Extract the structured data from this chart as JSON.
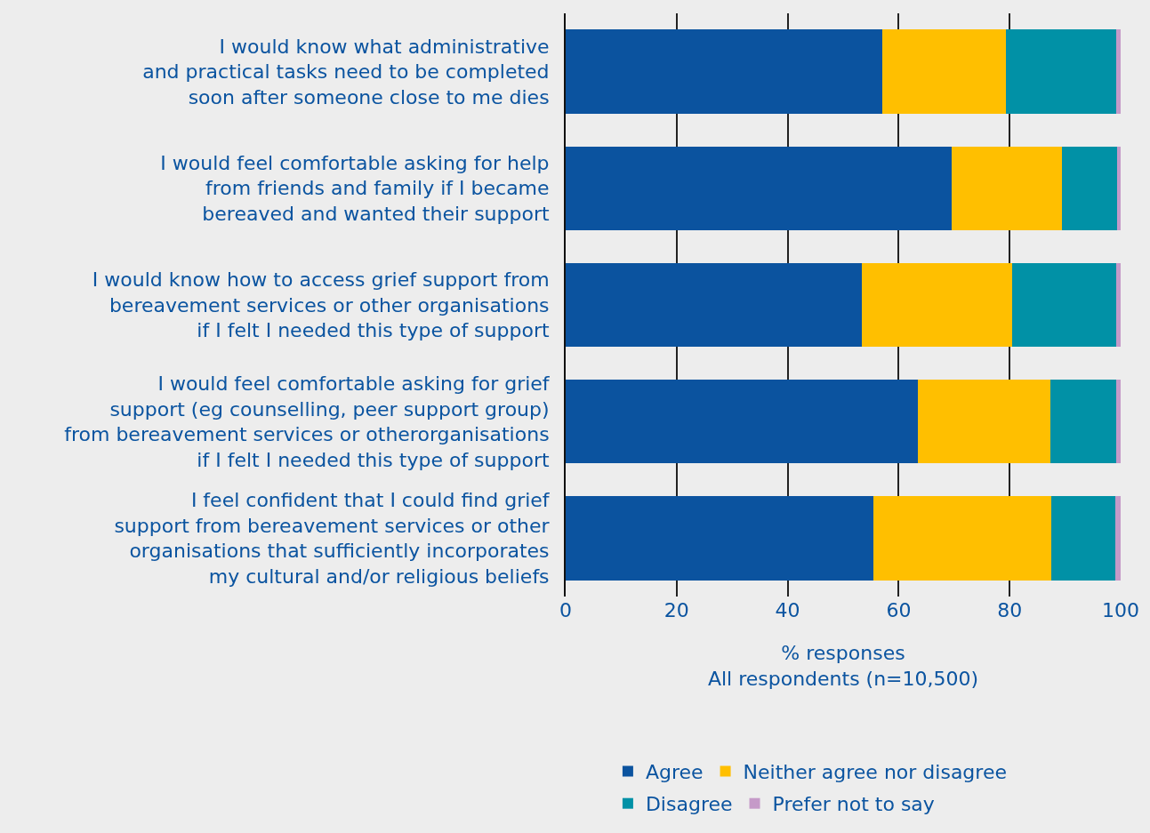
{
  "chart_data": {
    "type": "bar",
    "orientation": "horizontal",
    "stacked": true,
    "categories": [
      "I would know what administrative\nand practical tasks need to be completed\nsoon after someone close to me dies",
      "I would feel comfortable asking for help\nfrom friends and family if I became\nbereaved and wanted their support",
      "I would know how to access grief support from\nbereavement services or other organisations\nif I felt I needed this type of support",
      "I would feel comfortable asking for grief\nsupport (eg counselling, peer support group)\nfrom bereavement services or otherorganisations\nif I felt I needed this type of support",
      "I feel confident that I could find grief\nsupport from bereavement services or other\norganisations that sufficiently incorporates\nmy cultural and/or religious beliefs"
    ],
    "series": [
      {
        "name": "Agree",
        "color": "#0b539f",
        "values": [
          57.0,
          69.6,
          53.3,
          63.4,
          55.4
        ]
      },
      {
        "name": "Neither agree nor disagree",
        "color": "#ffbf00",
        "values": [
          22.4,
          19.8,
          27.1,
          23.9,
          32.1
        ]
      },
      {
        "name": "Disagree",
        "color": "#0191a6",
        "values": [
          19.8,
          10.0,
          18.8,
          11.9,
          11.6
        ]
      },
      {
        "name": "Prefer not to say",
        "color": "#c59ac8",
        "values": [
          0.8,
          0.6,
          0.8,
          0.8,
          0.9
        ]
      }
    ],
    "xlabel": "% responses\nAll respondents (n=10,500)",
    "xlim": [
      0,
      100
    ],
    "xticks": [
      0,
      20,
      40,
      60,
      80,
      100
    ],
    "grid": "x",
    "legend": "bottom"
  }
}
